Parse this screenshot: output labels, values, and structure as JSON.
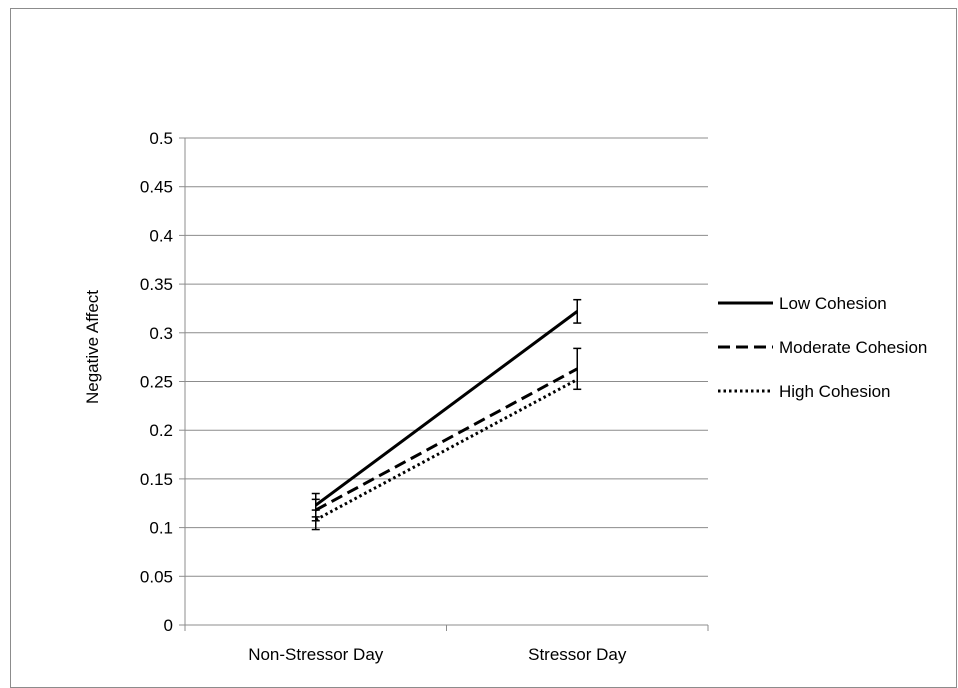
{
  "chart_data": {
    "type": "line",
    "title": "",
    "xlabel": "",
    "ylabel": "Negative Affect",
    "categories": [
      "Non-Stressor Day",
      "Stressor Day"
    ],
    "ylim": [
      0,
      0.5
    ],
    "yticks": [
      "0",
      "0.05",
      "0.1",
      "0.15",
      "0.2",
      "0.25",
      "0.3",
      "0.35",
      "0.4",
      "0.45",
      "0.5"
    ],
    "grid": true,
    "legend_position": "right",
    "series": [
      {
        "name": "Low Cohesion",
        "style": "solid",
        "values": [
          0.123,
          0.322
        ],
        "error": [
          0.012,
          0.012
        ]
      },
      {
        "name": "Moderate Cohesion",
        "style": "dashed",
        "values": [
          0.118,
          0.263
        ],
        "error": [
          0.011,
          0.021
        ]
      },
      {
        "name": "High Cohesion",
        "style": "dotted",
        "values": [
          0.108,
          0.252
        ],
        "error": [
          0.01,
          0.0
        ]
      }
    ],
    "colors": {
      "line": "#000000",
      "grid": "#8c8c8c"
    }
  }
}
